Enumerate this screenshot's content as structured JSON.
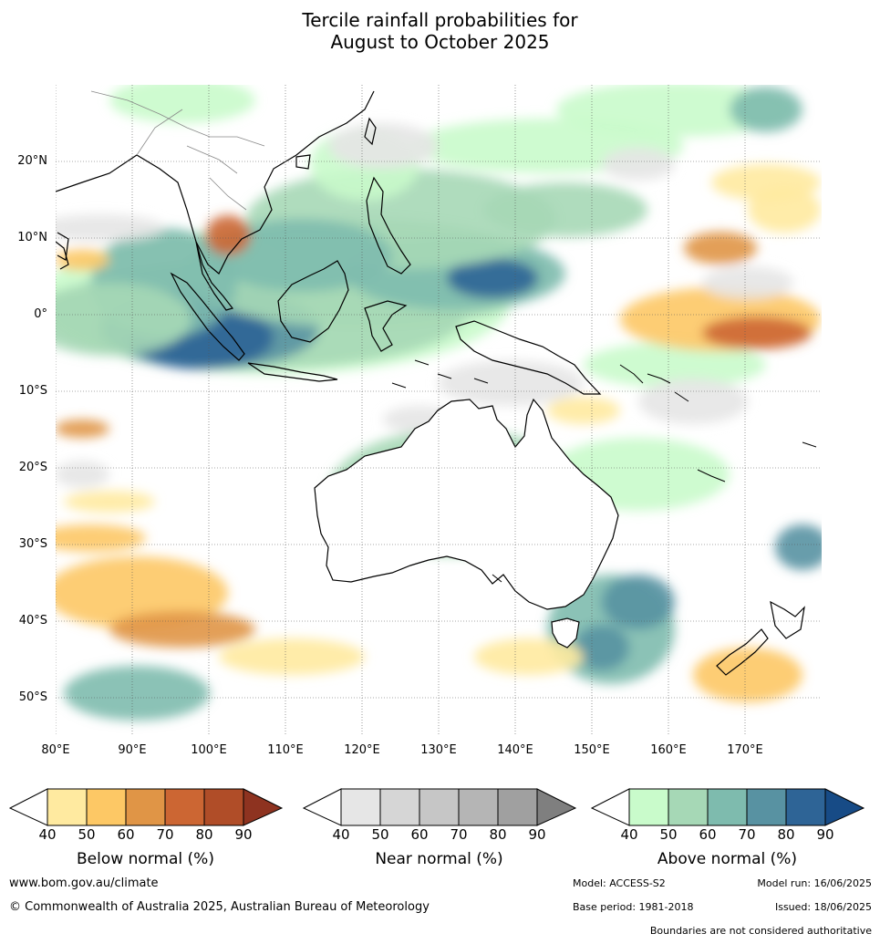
{
  "title": {
    "line1": "Tercile rainfall probabilities for",
    "line2": "August to October 2025"
  },
  "lat_labels": [
    "20°N",
    "10°N",
    "0°",
    "10°S",
    "20°S",
    "30°S",
    "40°S",
    "50°S"
  ],
  "lon_labels": [
    "80°E",
    "90°E",
    "100°E",
    "110°E",
    "120°E",
    "130°E",
    "140°E",
    "150°E",
    "160°E",
    "170°E"
  ],
  "legends": [
    {
      "title": "Below normal (%)",
      "ticks": [
        "40",
        "50",
        "60",
        "70",
        "80",
        "90"
      ],
      "colors": [
        "#ffffff",
        "#ffeaa0",
        "#fdc865",
        "#e09546",
        "#cc6633",
        "#b04d28",
        "#8e3320"
      ]
    },
    {
      "title": "Near normal (%)",
      "ticks": [
        "40",
        "50",
        "60",
        "70",
        "80",
        "90"
      ],
      "colors": [
        "#ffffff",
        "#e6e6e6",
        "#d6d6d6",
        "#c6c6c6",
        "#b5b5b5",
        "#a0a0a0",
        "#7f7f7f"
      ]
    },
    {
      "title": "Above normal (%)",
      "ticks": [
        "40",
        "50",
        "60",
        "70",
        "80",
        "90"
      ],
      "colors": [
        "#ffffff",
        "#c9fbcb",
        "#a6d8b6",
        "#7ebbae",
        "#5892a2",
        "#2e6496",
        "#174b86"
      ]
    }
  ],
  "footer": {
    "url": "www.bom.gov.au/climate",
    "copyright": "© Commonwealth of Australia 2025, Australian Bureau of Meteorology",
    "model": "Model: ACCESS-S2",
    "model_run": "Model run: 16/06/2025",
    "base_period": "Base period: 1981-2018",
    "issued": "Issued: 18/06/2025",
    "disclaimer": "Boundaries are not considered authoritative"
  }
}
